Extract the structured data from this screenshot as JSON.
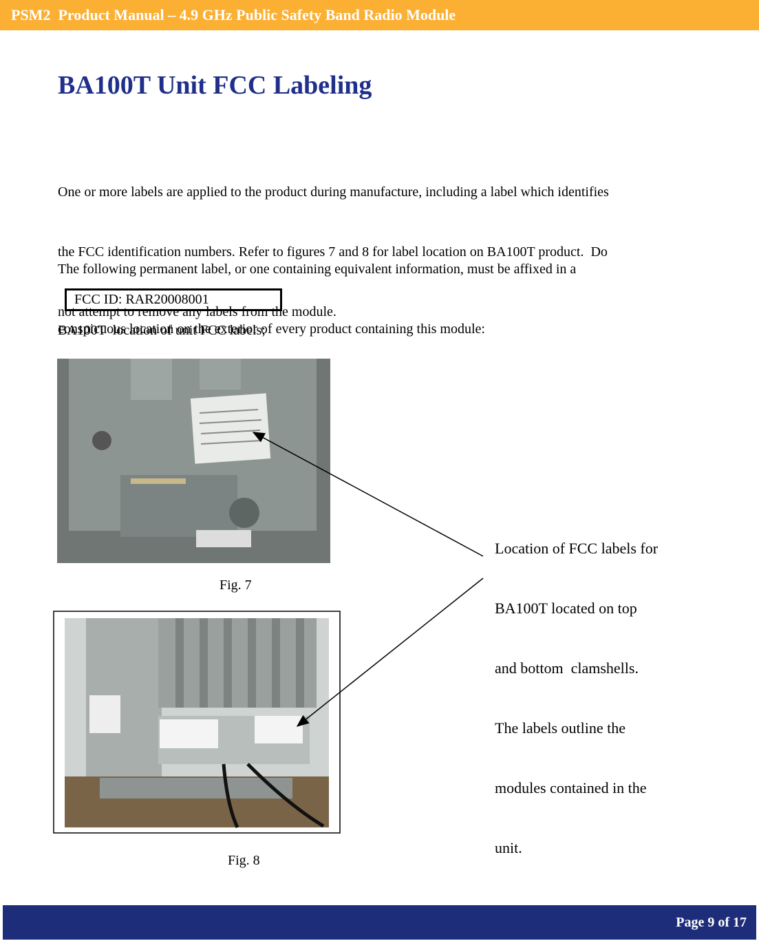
{
  "header": {
    "title": "PSM2  Product Manual – 4.9 GHz Public Safety Band Radio Module"
  },
  "section": {
    "title": "BA100T Unit FCC Labeling",
    "paragraphs": [
      [
        "One or more labels are applied to the product during manufacture, including a label which identifies",
        "the FCC identification numbers. Refer to figures 7 and 8 for label location on BA100T product.  Do",
        "not attempt to remove any labels from the module."
      ],
      [
        "The following permanent label, or one containing equivalent information, must be affixed in a",
        "conspicuous location on the exterior of every product containing this module:"
      ]
    ]
  },
  "fcc_box": "FCC ID: RAR20008001",
  "location_caption": "BA100T  location of unit FCC labels;",
  "figures": [
    {
      "caption": "Fig. 7"
    },
    {
      "caption": "Fig. 8"
    }
  ],
  "annotation": {
    "lines": [
      "Location of FCC labels for",
      "BA100T located on top",
      "and bottom  clamshells.",
      "The labels outline the",
      "modules contained in the",
      "unit."
    ]
  },
  "footer": {
    "page": "Page 9 of 17"
  }
}
